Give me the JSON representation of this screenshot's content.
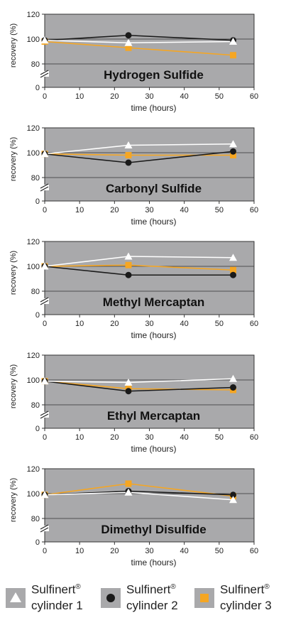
{
  "chart_data": [
    {
      "type": "line",
      "title": "Hydrogen Sulfide",
      "xlabel": "time (hours)",
      "ylabel": "recovery (%)",
      "xlim": [
        0,
        60
      ],
      "x_ticks": [
        "0",
        "10",
        "20",
        "30",
        "40",
        "50",
        "60"
      ],
      "y_ticks": [
        "0",
        "80",
        "100",
        "120"
      ],
      "x": [
        0,
        24,
        54
      ],
      "series": [
        {
          "name": "Sulfinert® cylinder 1",
          "values": [
            99,
            97,
            98
          ]
        },
        {
          "name": "Sulfinert® cylinder 2",
          "values": [
            99,
            103,
            99
          ]
        },
        {
          "name": "Sulfinert® cylinder 3",
          "values": [
            98,
            93,
            87
          ]
        }
      ]
    },
    {
      "type": "line",
      "title": "Carbonyl Sulfide",
      "xlabel": "time (hours)",
      "ylabel": "recovery (%)",
      "xlim": [
        0,
        60
      ],
      "x_ticks": [
        "0",
        "10",
        "20",
        "30",
        "40",
        "50",
        "60"
      ],
      "y_ticks": [
        "0",
        "80",
        "100",
        "120"
      ],
      "x": [
        0,
        24,
        54
      ],
      "series": [
        {
          "name": "Sulfinert® cylinder 1",
          "values": [
            99,
            106,
            107
          ]
        },
        {
          "name": "Sulfinert® cylinder 2",
          "values": [
            99,
            92,
            101
          ]
        },
        {
          "name": "Sulfinert® cylinder 3",
          "values": [
            99,
            98,
            98
          ]
        }
      ]
    },
    {
      "type": "line",
      "title": "Methyl Mercaptan",
      "xlabel": "time (hours)",
      "ylabel": "recovery (%)",
      "xlim": [
        0,
        60
      ],
      "x_ticks": [
        "0",
        "10",
        "20",
        "30",
        "40",
        "50",
        "60"
      ],
      "y_ticks": [
        "0",
        "80",
        "100",
        "120"
      ],
      "x": [
        0,
        24,
        54
      ],
      "series": [
        {
          "name": "Sulfinert® cylinder 1",
          "values": [
            100,
            108,
            107
          ]
        },
        {
          "name": "Sulfinert® cylinder 2",
          "values": [
            100,
            93,
            93
          ]
        },
        {
          "name": "Sulfinert® cylinder 3",
          "values": [
            100,
            101,
            97
          ]
        }
      ]
    },
    {
      "type": "line",
      "title": "Ethyl Mercaptan",
      "xlabel": "time (hours)",
      "ylabel": "recovery (%)",
      "xlim": [
        0,
        60
      ],
      "x_ticks": [
        "0",
        "10",
        "20",
        "30",
        "40",
        "50",
        "60"
      ],
      "y_ticks": [
        "0",
        "80",
        "100",
        "120"
      ],
      "x": [
        0,
        24,
        54
      ],
      "series": [
        {
          "name": "Sulfinert® cylinder 1",
          "values": [
            99,
            98,
            101
          ]
        },
        {
          "name": "Sulfinert® cylinder 2",
          "values": [
            99,
            91,
            94
          ]
        },
        {
          "name": "Sulfinert® cylinder 3",
          "values": [
            99,
            93,
            92
          ]
        }
      ]
    },
    {
      "type": "line",
      "title": "Dimethyl Disulfide",
      "xlabel": "time (hours)",
      "ylabel": "recovery (%)",
      "xlim": [
        0,
        60
      ],
      "x_ticks": [
        "0",
        "10",
        "20",
        "30",
        "40",
        "50",
        "60"
      ],
      "y_ticks": [
        "0",
        "80",
        "100",
        "120"
      ],
      "x": [
        0,
        24,
        54
      ],
      "series": [
        {
          "name": "Sulfinert® cylinder 1",
          "values": [
            99,
            101,
            95
          ]
        },
        {
          "name": "Sulfinert® cylinder 2",
          "values": [
            99,
            102,
            99
          ]
        },
        {
          "name": "Sulfinert® cylinder 3",
          "values": [
            99,
            108,
            98
          ]
        }
      ]
    }
  ],
  "styles": {
    "plot_background": "#a9a9ab",
    "cylinder_1_color": "#ffffff",
    "cylinder_2_color": "#1a1a1a",
    "cylinder_3_color": "#f5a623",
    "cylinder_1_marker": "triangle",
    "cylinder_2_marker": "circle",
    "cylinder_3_marker": "square"
  },
  "legend": {
    "items": [
      {
        "line1": "Sulfinert",
        "reg": "®",
        "line2": "cylinder 1",
        "icon": "white-triangle-icon"
      },
      {
        "line1": "Sulfinert",
        "reg": "®",
        "line2": "cylinder 2",
        "icon": "black-circle-icon"
      },
      {
        "line1": "Sulfinert",
        "reg": "®",
        "line2": "cylinder 3",
        "icon": "orange-square-icon"
      }
    ]
  }
}
